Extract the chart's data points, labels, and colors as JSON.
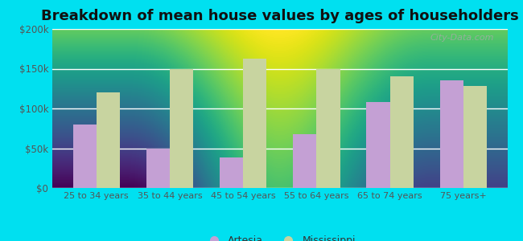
{
  "title": "Breakdown of mean house values by ages of householders",
  "categories": [
    "25 to 34 years",
    "35 to 44 years",
    "45 to 54 years",
    "55 to 64 years",
    "65 to 74 years",
    "75 years+"
  ],
  "artesia_values": [
    80000,
    50000,
    38000,
    68000,
    108000,
    135000
  ],
  "mississippi_values": [
    120000,
    150000,
    163000,
    150000,
    140000,
    128000
  ],
  "artesia_color": "#c4a0d4",
  "mississippi_color": "#c8d4a0",
  "background_outer": "#00e0f0",
  "background_inner_top": "#f0faf0",
  "background_inner_bottom": "#d0eed8",
  "ylim": [
    0,
    200000
  ],
  "yticks": [
    0,
    50000,
    100000,
    150000,
    200000
  ],
  "ytick_labels": [
    "$0",
    "$50k",
    "$100k",
    "$150k",
    "$200k"
  ],
  "title_fontsize": 13,
  "legend_label_artesia": "Artesia",
  "legend_label_mississippi": "Mississippi",
  "watermark": "City-Data.com",
  "tick_color": "#555555",
  "grid_color": "#ffffff"
}
